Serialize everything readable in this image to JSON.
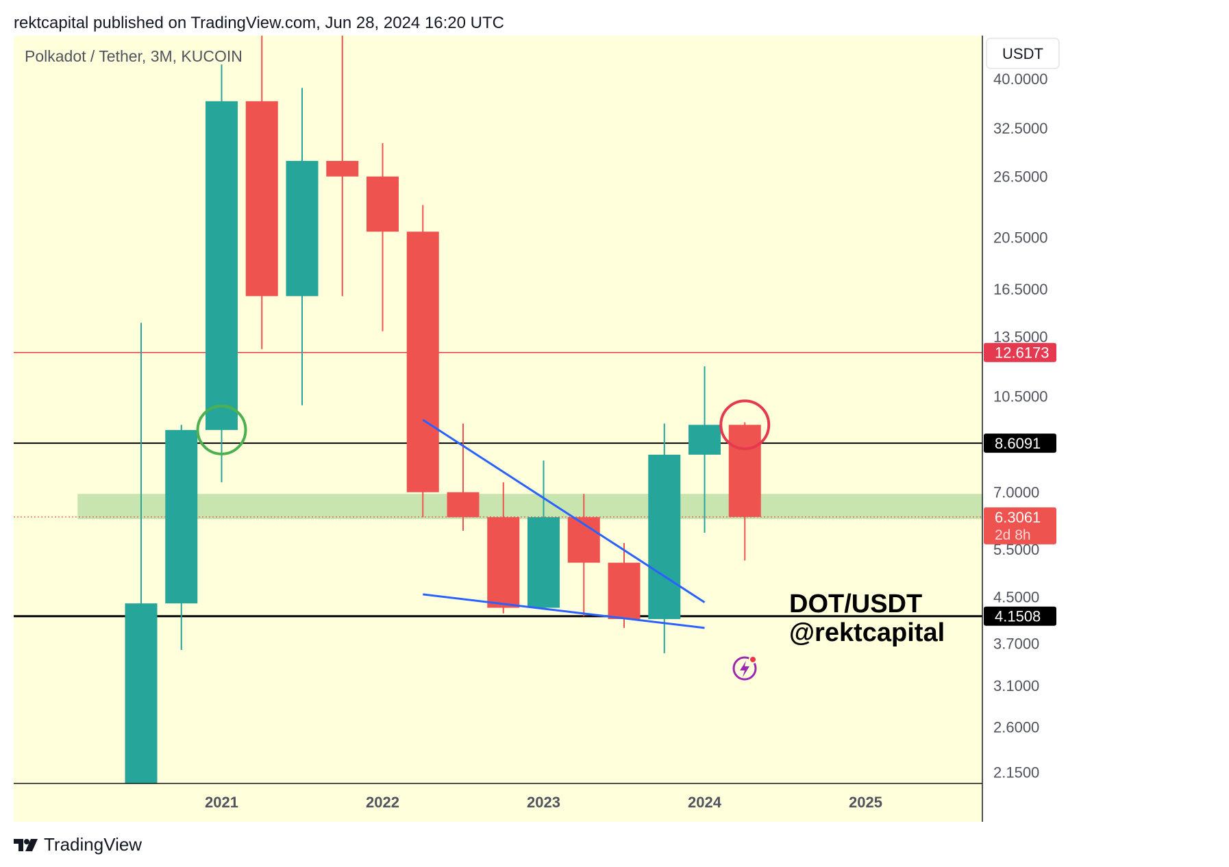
{
  "header": {
    "text": "rektcapital published on TradingView.com, Jun 28, 2024 16:20 UTC"
  },
  "chart": {
    "symbol_title": "Polkadot / Tether, 3M, KUCOIN",
    "currency_button": "USDT",
    "watermark_line1": "DOT/USDT",
    "watermark_line2": "@rektcapital",
    "countdown": "2d 8h"
  },
  "footer": {
    "brand": "TradingView"
  },
  "colors": {
    "background": "#ffffdb",
    "up": "#26a69a",
    "down": "#ef5350",
    "zone": "#c5e4ae",
    "trendline": "#2962ff",
    "resistance": "#e53950",
    "circle_green": "#4caf50",
    "circle_red": "#e53950",
    "axis_text": "#50535e",
    "grid_axis": "#131722"
  },
  "chart_data": {
    "type": "candlestick",
    "scale": "log",
    "ylim": [
      2.05,
      48
    ],
    "y_ticks": [
      "40.0000",
      "32.5000",
      "26.5000",
      "20.5000",
      "16.5000",
      "13.5000",
      "10.5000",
      "7.0000",
      "5.5000",
      "4.5000",
      "3.7000",
      "3.1000",
      "2.6000",
      "2.1500"
    ],
    "x_ticks": [
      "2021",
      "2022",
      "2023",
      "2024",
      "2025"
    ],
    "candles": [
      {
        "period": "2020-Q3",
        "open": 2.0,
        "high": 14.3,
        "low": 2.0,
        "close": 4.38
      },
      {
        "period": "2020-Q4",
        "open": 4.38,
        "high": 9.3,
        "low": 3.6,
        "close": 9.1
      },
      {
        "period": "2021-Q1",
        "open": 9.1,
        "high": 42.5,
        "low": 7.3,
        "close": 36.4
      },
      {
        "period": "2021-Q2",
        "open": 36.4,
        "high": 48.0,
        "low": 12.8,
        "close": 16.0
      },
      {
        "period": "2021-Q3",
        "open": 16.0,
        "high": 38.5,
        "low": 10.1,
        "close": 28.3
      },
      {
        "period": "2021-Q4",
        "open": 28.3,
        "high": 48.0,
        "low": 16.0,
        "close": 26.5
      },
      {
        "period": "2022-Q1",
        "open": 26.5,
        "high": 30.5,
        "low": 13.8,
        "close": 21.0
      },
      {
        "period": "2022-Q2",
        "open": 21.0,
        "high": 23.5,
        "low": 6.3,
        "close": 7.0
      },
      {
        "period": "2022-Q3",
        "open": 7.0,
        "high": 9.35,
        "low": 5.95,
        "close": 6.3
      },
      {
        "period": "2022-Q4",
        "open": 6.3,
        "high": 7.3,
        "low": 4.2,
        "close": 4.3
      },
      {
        "period": "2023-Q1",
        "open": 4.3,
        "high": 8.0,
        "low": 4.3,
        "close": 6.3
      },
      {
        "period": "2023-Q2",
        "open": 6.3,
        "high": 6.95,
        "low": 4.15,
        "close": 5.2
      },
      {
        "period": "2023-Q3",
        "open": 5.2,
        "high": 5.65,
        "low": 3.95,
        "close": 4.1
      },
      {
        "period": "2023-Q4",
        "open": 4.1,
        "high": 9.35,
        "low": 3.55,
        "close": 8.2
      },
      {
        "period": "2024-Q1",
        "open": 8.2,
        "high": 11.9,
        "low": 5.9,
        "close": 9.3
      },
      {
        "period": "2024-Q2",
        "open": 9.3,
        "high": 9.4,
        "low": 5.25,
        "close": 6.3061
      }
    ],
    "levels": [
      {
        "label": "12.6173",
        "value": 12.6173,
        "style": "resistance"
      },
      {
        "label": "8.6091",
        "value": 8.6091,
        "style": "black-thin"
      },
      {
        "label": "4.1508",
        "value": 4.1508,
        "style": "black-thick"
      }
    ],
    "current_price": {
      "label": "6.3061",
      "value": 6.3061
    },
    "support_zone": {
      "low": 6.25,
      "high": 6.95,
      "from_period": "2020-Q2"
    },
    "trendlines": [
      {
        "from": {
          "period": "2022-Q2",
          "value": 9.5
        },
        "to": {
          "period": "2024-Q1",
          "value": 4.4
        }
      },
      {
        "from": {
          "period": "2022-Q2",
          "value": 4.55
        },
        "to": {
          "period": "2024-Q1",
          "value": 3.95
        }
      }
    ],
    "markers": [
      {
        "kind": "circle",
        "color": "green",
        "period": "2021-Q1",
        "value": 9.1
      },
      {
        "kind": "circle",
        "color": "red",
        "period": "2024-Q2",
        "value": 9.3
      }
    ]
  }
}
